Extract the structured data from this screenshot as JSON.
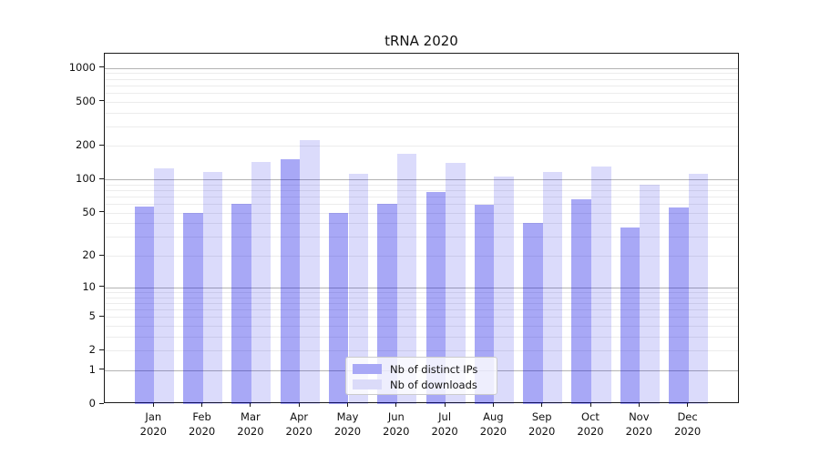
{
  "chart_data": {
    "type": "bar",
    "title": "tRNA 2020",
    "categories": [
      "Jan 2020",
      "Feb 2020",
      "Mar 2020",
      "Apr 2020",
      "May 2020",
      "Jun 2020",
      "Jul 2020",
      "Aug 2020",
      "Sep 2020",
      "Oct 2020",
      "Nov 2020",
      "Dec 2020"
    ],
    "series": [
      {
        "name": "Nb of distinct IPs",
        "fill": "rgba(0,0,230,0.34)",
        "legend_color": "#a8a8f6",
        "values": [
          57,
          50,
          60,
          151,
          50,
          60,
          77,
          59,
          40,
          66,
          37,
          56
        ]
      },
      {
        "name": "Nb of downloads",
        "fill": "rgba(0,0,230,0.14)",
        "legend_color": "#dbdbf9",
        "values": [
          127,
          118,
          144,
          226,
          112,
          172,
          141,
          106,
          116,
          130,
          89,
          112
        ]
      }
    ],
    "yticks": [
      1000,
      500,
      200,
      100,
      50,
      20,
      10,
      5,
      2,
      1,
      0
    ],
    "yscale": "log1p",
    "ylim": [
      0,
      1340
    ],
    "xlabel": "",
    "ylabel": "",
    "grid": {
      "major_lines_at": [
        1,
        10,
        100,
        1000
      ],
      "minor_lines": "2-9 per decade"
    },
    "legend_position": "lower center"
  },
  "colors": {
    "bar_dark_on_white": "#a8a8f6",
    "bar_light_on_white": "#dbdbf9",
    "major_grid": "#b3b3b3",
    "minor_grid": "#ececec",
    "spine": "#1a1a1a",
    "text": "#111111",
    "legend_border": "#cccccc"
  }
}
